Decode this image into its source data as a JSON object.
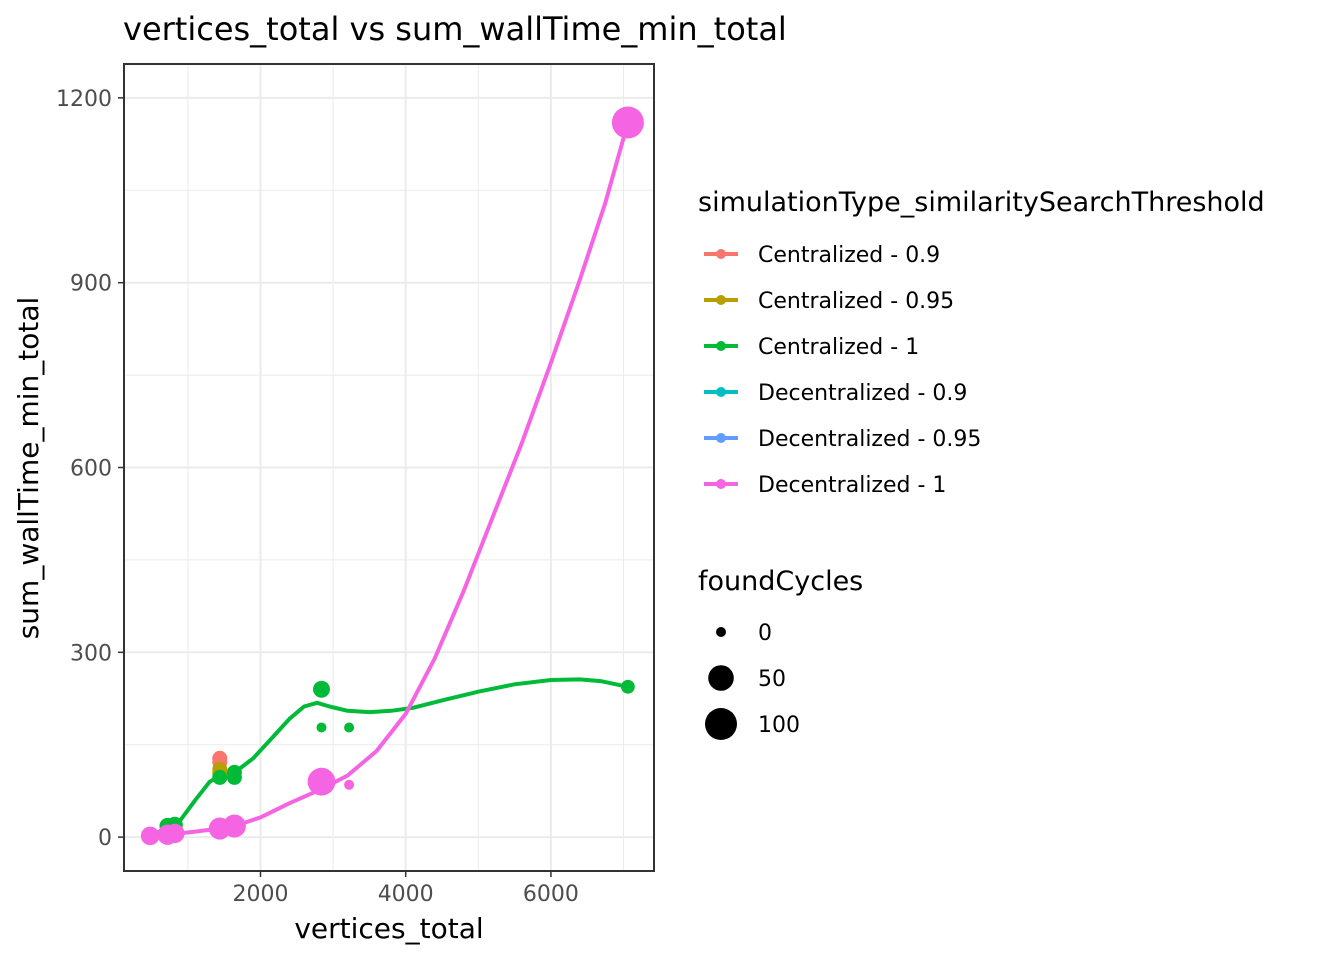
{
  "chart_data": {
    "type": "scatter",
    "title": "vertices_total  vs  sum_wallTime_min_total",
    "xlabel": "vertices_total",
    "ylabel": "sum_wallTime_min_total",
    "xlim": [
      120,
      7420
    ],
    "ylim": [
      -55,
      1255
    ],
    "x_ticks": [
      2000,
      4000,
      6000
    ],
    "x_tick_labels": [
      "2000",
      "4000",
      "6000"
    ],
    "y_ticks": [
      0,
      300,
      600,
      900,
      1200
    ],
    "y_tick_labels": [
      "0",
      "300",
      "600",
      "900",
      "1200"
    ],
    "grid": true,
    "legend_placement": "right",
    "color_legend": {
      "title": "simulationType_similaritySearchThreshold",
      "entries": [
        {
          "label": "Centralized - 0.9",
          "color": "#F8766D"
        },
        {
          "label": "Centralized - 0.95",
          "color": "#B79F00"
        },
        {
          "label": "Centralized - 1",
          "color": "#00BA38"
        },
        {
          "label": "Decentralized - 0.9",
          "color": "#00BFC4"
        },
        {
          "label": "Decentralized - 0.95",
          "color": "#619CFF"
        },
        {
          "label": "Decentralized - 1",
          "color": "#F564E3"
        }
      ]
    },
    "size_legend": {
      "title": "foundCycles",
      "entries": [
        {
          "label": "0",
          "value": 0
        },
        {
          "label": "50",
          "value": 50
        },
        {
          "label": "100",
          "value": 100
        }
      ]
    },
    "series": [
      {
        "name": "Centralized - 0.9",
        "color": "#F8766D",
        "points": [
          [
            1440,
            128,
            5
          ],
          [
            1440,
            122,
            5
          ]
        ],
        "smooth": []
      },
      {
        "name": "Centralized - 0.95",
        "color": "#B79F00",
        "points": [
          [
            1440,
            110,
            5
          ],
          [
            1440,
            104,
            5
          ]
        ],
        "smooth": []
      },
      {
        "name": "Centralized - 1",
        "color": "#00BA38",
        "points": [
          [
            480,
            3,
            5
          ],
          [
            720,
            18,
            8
          ],
          [
            820,
            20,
            8
          ],
          [
            1440,
            97,
            5
          ],
          [
            1640,
            97,
            5
          ],
          [
            1640,
            105,
            5
          ],
          [
            2840,
            240,
            10
          ],
          [
            2840,
            178,
            0
          ],
          [
            3220,
            178,
            0
          ],
          [
            7060,
            244,
            3
          ]
        ],
        "smooth": [
          [
            480,
            3
          ],
          [
            700,
            13
          ],
          [
            900,
            28
          ],
          [
            1100,
            60
          ],
          [
            1300,
            90
          ],
          [
            1500,
            103
          ],
          [
            1700,
            110
          ],
          [
            1900,
            128
          ],
          [
            2150,
            160
          ],
          [
            2400,
            192
          ],
          [
            2600,
            212
          ],
          [
            2780,
            218
          ],
          [
            2950,
            212
          ],
          [
            3200,
            205
          ],
          [
            3500,
            203
          ],
          [
            3800,
            205
          ],
          [
            4100,
            210
          ],
          [
            4500,
            222
          ],
          [
            5000,
            236
          ],
          [
            5500,
            248
          ],
          [
            6000,
            255
          ],
          [
            6400,
            256
          ],
          [
            6700,
            253
          ],
          [
            7060,
            244
          ]
        ]
      },
      {
        "name": "Decentralized - 0.9",
        "color": "#00BFC4",
        "points": [
          [
            1440,
            14,
            20
          ]
        ],
        "smooth": []
      },
      {
        "name": "Decentralized - 0.95",
        "color": "#619CFF",
        "points": [
          [
            1440,
            12,
            20
          ]
        ],
        "smooth": []
      },
      {
        "name": "Decentralized - 1",
        "color": "#F564E3",
        "points": [
          [
            480,
            2,
            15
          ],
          [
            720,
            4,
            22
          ],
          [
            820,
            6,
            18
          ],
          [
            1440,
            14,
            30
          ],
          [
            1640,
            18,
            35
          ],
          [
            2840,
            90,
            65
          ],
          [
            3220,
            85,
            0
          ],
          [
            7060,
            1160,
            100
          ]
        ],
        "smooth": [
          [
            480,
            2
          ],
          [
            800,
            5
          ],
          [
            1100,
            9
          ],
          [
            1440,
            14
          ],
          [
            1640,
            18
          ],
          [
            2000,
            32
          ],
          [
            2400,
            55
          ],
          [
            2840,
            78
          ],
          [
            3200,
            100
          ],
          [
            3600,
            140
          ],
          [
            4000,
            200
          ],
          [
            4400,
            290
          ],
          [
            4800,
            400
          ],
          [
            5200,
            520
          ],
          [
            5600,
            640
          ],
          [
            6000,
            770
          ],
          [
            6400,
            905
          ],
          [
            6750,
            1030
          ],
          [
            7060,
            1160
          ]
        ]
      }
    ]
  }
}
